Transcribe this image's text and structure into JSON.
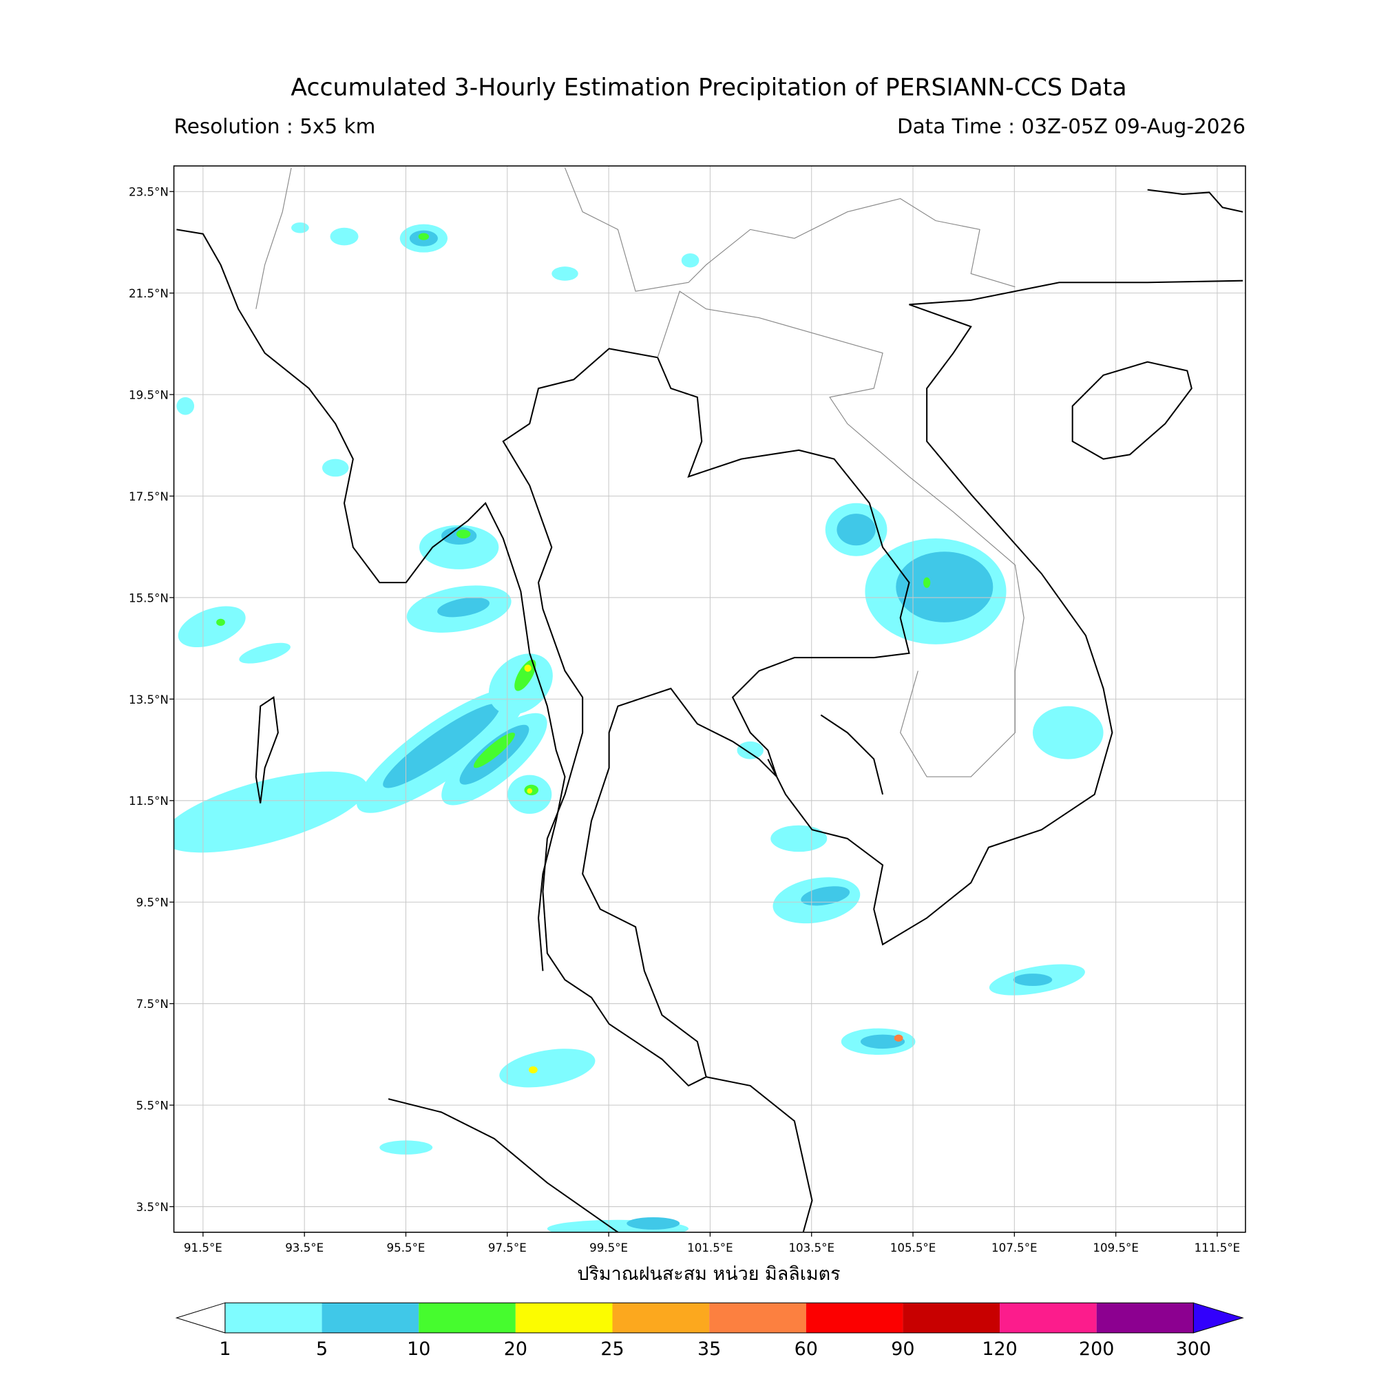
{
  "header": {
    "title": "Accumulated 3-Hourly Estimation Precipitation of PERSIANN-CCS Data",
    "resolution": "Resolution : 5x5 km",
    "data_time": "Data Time : 03Z-05Z 09-Aug-2026"
  },
  "map": {
    "lat_labels": [
      "23.5°N",
      "21.5°N",
      "19.5°N",
      "17.5°N",
      "15.5°N",
      "13.5°N",
      "11.5°N",
      "9.5°N",
      "7.5°N",
      "5.5°N",
      "3.5°N"
    ],
    "lon_labels": [
      "91.5°E",
      "93.5°E",
      "95.5°E",
      "97.5°E",
      "99.5°E",
      "101.5°E",
      "103.5°E",
      "105.5°E",
      "107.5°E",
      "109.5°E",
      "111.5°E"
    ],
    "xlabel": "ปริมาณฝนสะสม หน่วย มิลลิเมตร"
  },
  "colorbar": {
    "levels": [
      1,
      5,
      10,
      20,
      25,
      35,
      60,
      90,
      120,
      200,
      300
    ],
    "colors": [
      "#7ffcff",
      "#40c8e8",
      "#46fc2e",
      "#fcfc00",
      "#fca81e",
      "#fc8040",
      "#fc0000",
      "#c80000",
      "#fc1c8c",
      "#8c0090"
    ],
    "under_color": "#ffffff",
    "over_color": "#3200fc"
  }
}
